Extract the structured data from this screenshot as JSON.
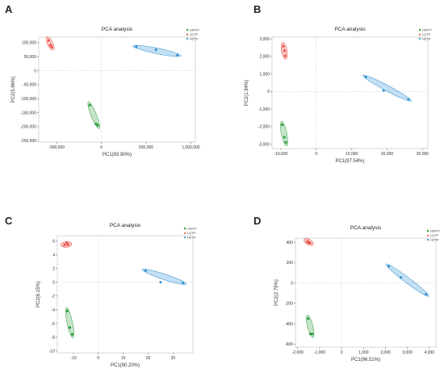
{
  "chart_data": [
    {
      "panel": "A",
      "type": "scatter",
      "title": "PCA analysis",
      "xlabel": "PC1(93.90%)",
      "ylabel": "PC2(5.86%)",
      "xlim": [
        -700000,
        1050000
      ],
      "ylim": [
        -255000,
        120000
      ],
      "xticks": [
        -500000,
        0,
        500000,
        1000000
      ],
      "xtick_labels": [
        "-500,000",
        "0",
        "500,000",
        "1,000,000"
      ],
      "yticks": [
        100000,
        50000,
        0,
        -50000,
        -100000,
        -150000,
        -200000,
        -250000
      ],
      "ytick_labels": [
        "100,000",
        "50,000",
        "0",
        "-50,000",
        "-100,000",
        "-150,000",
        "-200,000",
        "-250,000"
      ],
      "legend": "top-right",
      "series": [
        {
          "name": "HWTP",
          "color": "#2e9e3e",
          "marker": "circle",
          "points": [
            [
              -130000,
              -123000
            ],
            [
              -60000,
              -190000
            ],
            [
              -40000,
              -195000
            ]
          ]
        },
        {
          "name": "LDTP",
          "color": "#e8413a",
          "marker": "triangle",
          "points": [
            [
              -590000,
              109000
            ],
            [
              -570000,
              93000
            ],
            [
              -555000,
              86000
            ]
          ]
        },
        {
          "name": "HZTP",
          "color": "#2b8fd0",
          "marker": "diamond",
          "points": [
            [
              390000,
              86000
            ],
            [
              610000,
              75000
            ],
            [
              850000,
              56000
            ]
          ]
        }
      ]
    },
    {
      "panel": "B",
      "type": "scatter",
      "title": "PCA analysis",
      "xlabel": "PC1(97.54%)",
      "ylabel": "PC2(1.94%)",
      "xlim": [
        -12500,
        31500
      ],
      "ylim": [
        -3250,
        3100
      ],
      "xticks": [
        -10000,
        0,
        10000,
        20000,
        30000
      ],
      "xtick_labels": [
        "-10,000",
        "0",
        "10,000",
        "20,000",
        "30,000"
      ],
      "yticks": [
        3000,
        2000,
        1000,
        0,
        -1000,
        -2000,
        -3000
      ],
      "ytick_labels": [
        "3,000",
        "2,000",
        "1,000",
        "0",
        "-1,000",
        "-2,000",
        "-3,000"
      ],
      "legend": "top-right",
      "series": [
        {
          "name": "HWTP",
          "color": "#2e9e3e",
          "marker": "circle",
          "points": [
            [
              -9600,
              -1900
            ],
            [
              -9000,
              -2600
            ],
            [
              -8600,
              -2900
            ]
          ]
        },
        {
          "name": "LDTP",
          "color": "#e8413a",
          "marker": "triangle",
          "points": [
            [
              -9300,
              2600
            ],
            [
              -9000,
              2350
            ],
            [
              -8800,
              2050
            ]
          ]
        },
        {
          "name": "HZTP",
          "color": "#2b8fd0",
          "marker": "diamond",
          "points": [
            [
              14000,
              830
            ],
            [
              19000,
              50
            ],
            [
              26000,
              -450
            ]
          ]
        }
      ]
    },
    {
      "panel": "C",
      "type": "scatter",
      "title": "PCA analysis",
      "xlabel": "PC1(90.20%)",
      "ylabel": "PC2(6.15%)",
      "xlim": [
        -16.5,
        38
      ],
      "ylim": [
        -10.3,
        6.8
      ],
      "xticks": [
        -10,
        0,
        10,
        20,
        30
      ],
      "xtick_labels": [
        "-10",
        "0",
        "10",
        "20",
        "30"
      ],
      "yticks": [
        6,
        4,
        2,
        0,
        -2,
        -4,
        -6,
        -8,
        -10
      ],
      "ytick_labels": [
        "6",
        "4",
        "2",
        "0",
        "-2",
        "-4",
        "-6",
        "-8",
        "-10"
      ],
      "legend": "top-right",
      "series": [
        {
          "name": "HWTP",
          "color": "#2e9e3e",
          "marker": "circle",
          "points": [
            [
              -12.5,
              -4.2
            ],
            [
              -11.5,
              -6.6
            ],
            [
              -10.5,
              -7.6
            ]
          ]
        },
        {
          "name": "LDTP",
          "color": "#e8413a",
          "marker": "triangle",
          "points": [
            [
              -13.6,
              5.5
            ],
            [
              -12.7,
              5.8
            ],
            [
              -12.2,
              5.55
            ]
          ]
        },
        {
          "name": "HZTP",
          "color": "#2b8fd0",
          "marker": "diamond",
          "points": [
            [
              19,
              1.7
            ],
            [
              25,
              0.0
            ],
            [
              34,
              -0.1
            ]
          ]
        }
      ]
    },
    {
      "panel": "D",
      "type": "scatter",
      "title": "PCA analysis",
      "xlabel": "PC1(96.51%)",
      "ylabel": "PC2(2.79%)",
      "xlim": [
        -2100,
        4300
      ],
      "ylim": [
        -630,
        440
      ],
      "xticks": [
        -2000,
        -1000,
        0,
        1000,
        2000,
        3000,
        4000
      ],
      "xtick_labels": [
        "-2,000",
        "-1,000",
        "0",
        "1,000",
        "2,000",
        "3,000",
        "4,000"
      ],
      "yticks": [
        400,
        200,
        0,
        -200,
        -400,
        -600
      ],
      "ytick_labels": [
        "400",
        "200",
        "0",
        "-200",
        "-400",
        "-600"
      ],
      "legend": "top-right",
      "series": [
        {
          "name": "HWTP",
          "color": "#2e9e3e",
          "marker": "circle",
          "points": [
            [
              -1520,
              -350
            ],
            [
              -1420,
              -500
            ],
            [
              -1340,
              -500
            ]
          ]
        },
        {
          "name": "LDTP",
          "color": "#e8413a",
          "marker": "triangle",
          "points": [
            [
              -1560,
              410
            ],
            [
              -1490,
              400
            ],
            [
              -1440,
              395
            ]
          ]
        },
        {
          "name": "HZTP",
          "color": "#2b8fd0",
          "marker": "diamond",
          "points": [
            [
              2150,
              165
            ],
            [
              2700,
              55
            ],
            [
              3850,
              -110
            ]
          ]
        }
      ]
    }
  ]
}
